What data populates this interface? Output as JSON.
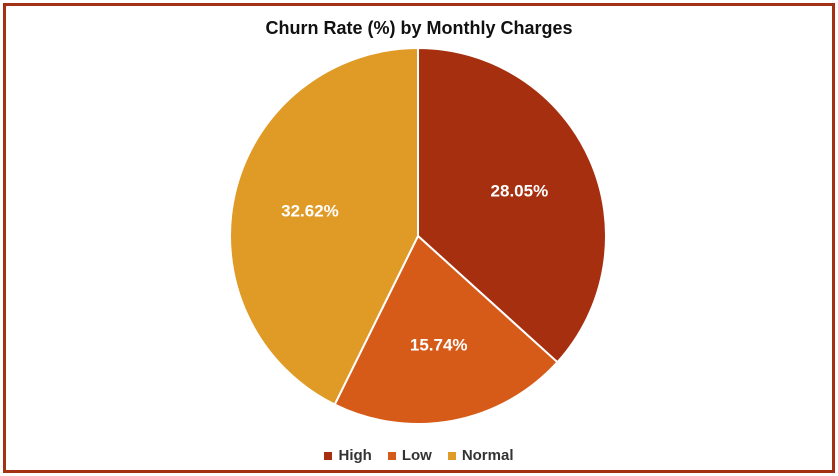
{
  "chart_data": {
    "type": "pie",
    "title": "Churn Rate (%) by Monthly Charges",
    "legend_position": "bottom",
    "slices": [
      {
        "name": "High",
        "value": 28.05,
        "label": "28.05%",
        "color": "#a52f0f"
      },
      {
        "name": "Low",
        "value": 15.74,
        "label": "15.74%",
        "color": "#d65a18"
      },
      {
        "name": "Normal",
        "value": 32.62,
        "label": "32.62%",
        "color": "#e09b26"
      }
    ]
  }
}
